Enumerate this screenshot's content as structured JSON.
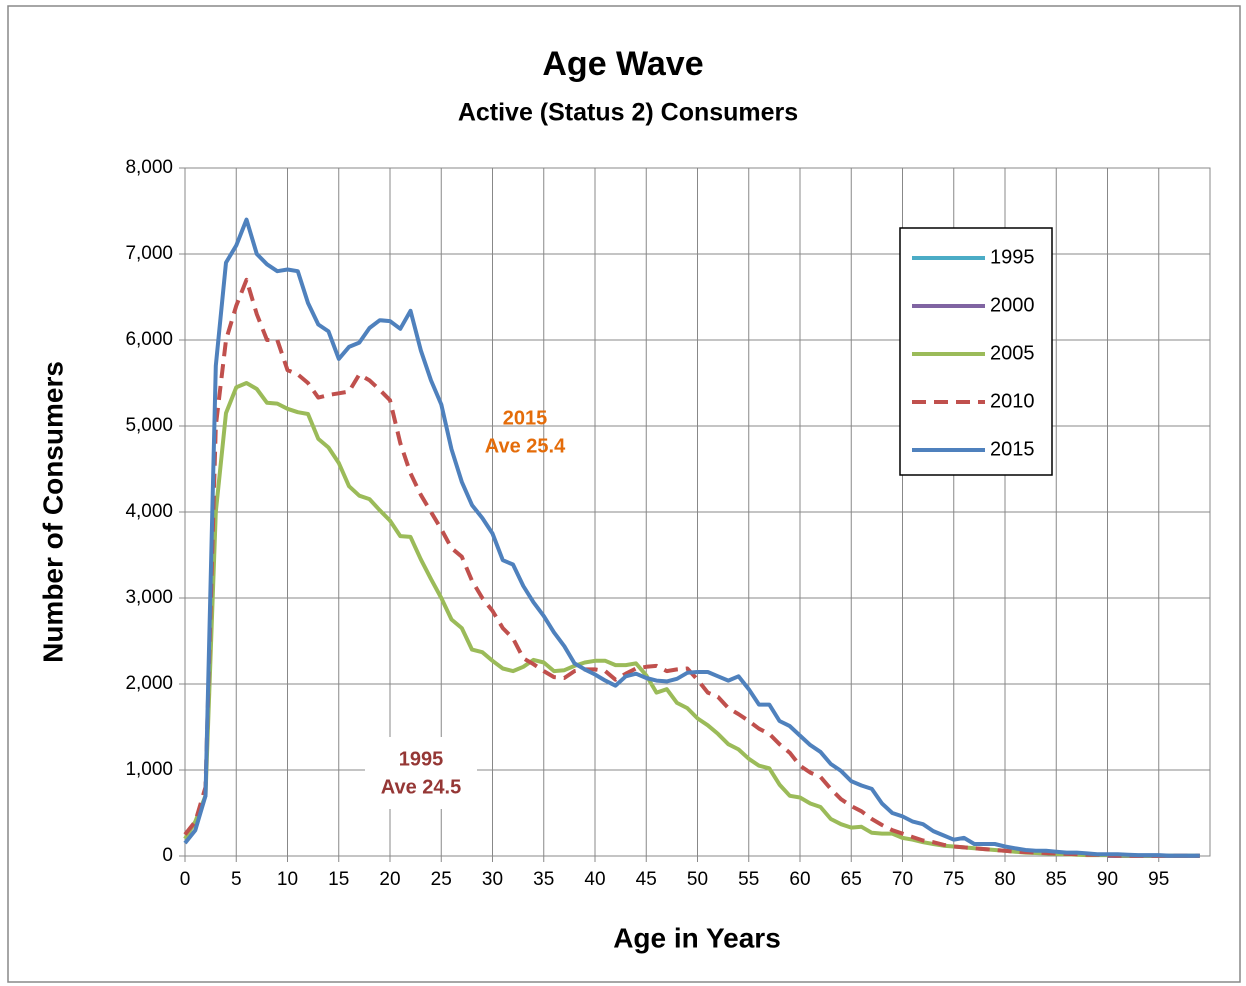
{
  "chart_data": {
    "type": "line",
    "title": "Age Wave",
    "subtitle": "Active (Status 2) Consumers",
    "x_label": "Age in Years",
    "y_label": "Number of Consumers",
    "x": [
      0,
      1,
      2,
      3,
      4,
      5,
      6,
      7,
      8,
      9,
      10,
      11,
      12,
      13,
      14,
      15,
      16,
      17,
      18,
      19,
      20,
      21,
      22,
      23,
      24,
      25,
      26,
      27,
      28,
      29,
      30,
      31,
      32,
      33,
      34,
      35,
      36,
      37,
      38,
      39,
      40,
      41,
      42,
      43,
      44,
      45,
      46,
      47,
      48,
      49,
      50,
      51,
      52,
      53,
      54,
      55,
      56,
      57,
      58,
      59,
      60,
      61,
      62,
      63,
      64,
      65,
      66,
      67,
      68,
      69,
      70,
      71,
      72,
      73,
      74,
      75,
      76,
      77,
      78,
      79,
      80,
      81,
      82,
      83,
      84,
      85,
      86,
      87,
      88,
      89,
      90,
      91,
      92,
      93,
      94,
      95,
      96,
      97,
      98,
      99
    ],
    "series": [
      {
        "name": "1995",
        "color": "#4bacc6",
        "values": [
          null,
          null,
          null,
          null,
          null,
          null,
          null,
          null,
          null,
          null,
          null,
          null,
          null,
          null,
          null,
          null,
          null,
          null,
          null,
          null,
          null,
          null,
          null,
          null,
          null,
          null,
          null,
          null,
          null,
          null,
          null,
          null,
          null,
          null,
          null,
          null,
          null,
          null,
          null,
          null,
          null,
          null,
          null,
          null,
          null,
          null,
          null,
          null,
          null,
          null,
          null,
          null,
          null,
          null,
          null,
          null,
          null,
          null,
          null,
          null,
          null,
          null,
          null,
          null,
          null,
          null,
          null,
          null,
          null,
          null,
          null,
          null,
          null,
          null,
          null,
          null,
          null,
          null,
          null,
          null,
          null,
          null,
          null,
          null,
          null,
          null,
          null,
          null,
          null,
          null,
          null,
          null,
          null,
          null,
          null,
          null,
          null,
          null,
          null,
          null
        ]
      },
      {
        "name": "2000",
        "color": "#8064a2",
        "values": [
          null,
          null,
          null,
          null,
          null,
          null,
          null,
          null,
          null,
          null,
          null,
          null,
          null,
          null,
          null,
          null,
          null,
          null,
          null,
          null,
          null,
          null,
          null,
          null,
          null,
          null,
          null,
          null,
          null,
          null,
          null,
          null,
          null,
          null,
          null,
          null,
          null,
          null,
          null,
          null,
          null,
          null,
          null,
          null,
          null,
          null,
          null,
          null,
          null,
          null,
          null,
          null,
          null,
          null,
          null,
          null,
          null,
          null,
          null,
          null,
          null,
          null,
          null,
          null,
          null,
          null,
          null,
          null,
          null,
          null,
          null,
          null,
          null,
          null,
          null,
          null,
          null,
          null,
          null,
          null,
          null,
          null,
          null,
          null,
          null,
          null,
          null,
          null,
          null,
          null,
          0,
          0,
          0,
          0,
          0,
          0,
          0,
          0,
          0,
          0
        ]
      },
      {
        "name": "2005",
        "color": "#9bbb59",
        "values": [
          200,
          400,
          700,
          4000,
          5150,
          5450,
          5500,
          5430,
          5270,
          5260,
          5200,
          5160,
          5140,
          4850,
          4750,
          4570,
          4300,
          4190,
          4150,
          4020,
          3900,
          3720,
          3710,
          3450,
          3220,
          3000,
          2750,
          2650,
          2400,
          2370,
          2270,
          2180,
          2150,
          2200,
          2280,
          2250,
          2150,
          2160,
          2210,
          2250,
          2270,
          2270,
          2220,
          2220,
          2240,
          2100,
          1900,
          1940,
          1780,
          1720,
          1600,
          1520,
          1420,
          1300,
          1240,
          1130,
          1050,
          1020,
          830,
          700,
          680,
          610,
          570,
          430,
          370,
          330,
          340,
          270,
          260,
          260,
          210,
          190,
          160,
          140,
          120,
          110,
          100,
          90,
          80,
          70,
          60,
          50,
          40,
          35,
          30,
          25,
          20,
          15,
          10,
          10,
          10,
          5,
          5,
          5,
          5,
          5,
          5,
          5,
          5,
          5
        ]
      },
      {
        "name": "2010",
        "color": "#c0504d",
        "dashed": true,
        "values": [
          250,
          400,
          800,
          5000,
          6000,
          6400,
          6700,
          6300,
          6000,
          6000,
          5650,
          5600,
          5500,
          5330,
          5360,
          5380,
          5400,
          5600,
          5530,
          5420,
          5300,
          4800,
          4450,
          4200,
          4000,
          3800,
          3580,
          3480,
          3200,
          3000,
          2850,
          2650,
          2530,
          2300,
          2230,
          2150,
          2080,
          2070,
          2150,
          2170,
          2170,
          2150,
          2050,
          2120,
          2180,
          2200,
          2210,
          2150,
          2170,
          2180,
          2050,
          1900,
          1850,
          1720,
          1650,
          1570,
          1480,
          1420,
          1300,
          1200,
          1050,
          970,
          920,
          780,
          660,
          580,
          520,
          430,
          360,
          300,
          260,
          220,
          180,
          160,
          130,
          110,
          100,
          90,
          80,
          70,
          60,
          50,
          45,
          40,
          35,
          30,
          25,
          20,
          15,
          15,
          10,
          5,
          5,
          5,
          5,
          5,
          5,
          5,
          5,
          5
        ]
      },
      {
        "name": "2015",
        "color": "#4f81bd",
        "values": [
          150,
          300,
          700,
          5700,
          6900,
          7100,
          7400,
          7000,
          6880,
          6800,
          6820,
          6800,
          6430,
          6180,
          6100,
          5780,
          5920,
          5970,
          6140,
          6230,
          6220,
          6130,
          6340,
          5880,
          5530,
          5250,
          4730,
          4350,
          4080,
          3930,
          3750,
          3440,
          3390,
          3140,
          2950,
          2790,
          2600,
          2440,
          2240,
          2170,
          2110,
          2040,
          1980,
          2090,
          2120,
          2070,
          2040,
          2030,
          2060,
          2130,
          2140,
          2140,
          2090,
          2040,
          2090,
          1940,
          1760,
          1760,
          1570,
          1510,
          1400,
          1290,
          1210,
          1070,
          990,
          870,
          820,
          780,
          610,
          500,
          460,
          400,
          370,
          290,
          240,
          190,
          210,
          140,
          140,
          140,
          110,
          90,
          70,
          60,
          60,
          50,
          40,
          40,
          30,
          20,
          20,
          20,
          15,
          10,
          10,
          10,
          5,
          5,
          5,
          5
        ]
      }
    ],
    "annotations": [
      {
        "lines": [
          "2015",
          "Ave 25.4"
        ],
        "color": "#e46c0a"
      },
      {
        "lines": [
          "1995",
          "Ave 24.5"
        ],
        "color": "#953735"
      }
    ],
    "xlim": [
      0,
      100
    ],
    "xticks": [
      0,
      5,
      10,
      15,
      20,
      25,
      30,
      35,
      40,
      45,
      50,
      55,
      60,
      65,
      70,
      75,
      80,
      85,
      90,
      95
    ],
    "ylim": [
      0,
      8000
    ],
    "yticks": [
      0,
      {
        "value": 1000,
        "label": "1,000"
      },
      {
        "value": 2000,
        "label": "2,000"
      },
      {
        "value": 3000,
        "label": "3,000"
      },
      {
        "value": 4000,
        "label": "4,000"
      },
      {
        "value": 5000,
        "label": "5,000"
      },
      {
        "value": 6000,
        "label": "6,000"
      },
      {
        "value": 7000,
        "label": "7,000"
      },
      {
        "value": 8000,
        "label": "8,000"
      }
    ],
    "grid": true
  }
}
